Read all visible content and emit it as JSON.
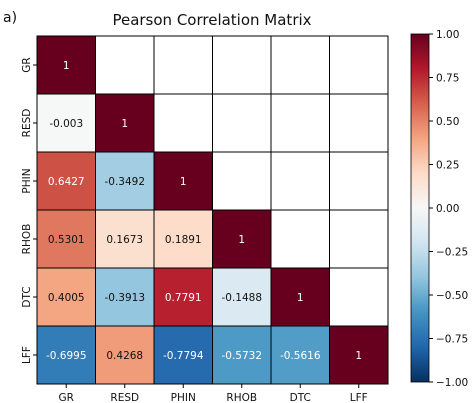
{
  "panel_label": "a)",
  "colors": {
    "cmap": [
      "#053061",
      "#2166ac",
      "#4393c3",
      "#92c5de",
      "#d1e5f0",
      "#f7f7f7",
      "#fddbc7",
      "#f4a582",
      "#d6604d",
      "#b2182b",
      "#67001f"
    ],
    "grid": "#000000"
  },
  "chart_data": {
    "type": "heatmap",
    "title": "Pearson Correlation Matrix",
    "variables": [
      "GR",
      "RESD",
      "PHIN",
      "RHOB",
      "DTC",
      "LFF"
    ],
    "matrix": [
      [
        1,
        null,
        null,
        null,
        null,
        null
      ],
      [
        -0.003,
        1,
        null,
        null,
        null,
        null
      ],
      [
        0.6427,
        -0.3492,
        1,
        null,
        null,
        null
      ],
      [
        0.5301,
        0.1673,
        0.1891,
        1,
        null,
        null
      ],
      [
        0.4005,
        -0.3913,
        0.7791,
        -0.1488,
        1,
        null
      ],
      [
        -0.6995,
        0.4268,
        -0.7794,
        -0.5732,
        -0.5616,
        1
      ]
    ],
    "cell_labels": [
      [
        "1",
        "",
        "",
        "",
        "",
        ""
      ],
      [
        "-0.003",
        "1",
        "",
        "",
        "",
        ""
      ],
      [
        "0.6427",
        "-0.3492",
        "1",
        "",
        "",
        ""
      ],
      [
        "0.5301",
        "0.1673",
        "0.1891",
        "1",
        "",
        ""
      ],
      [
        "0.4005",
        "-0.3913",
        "0.7791",
        "-0.1488",
        "1",
        ""
      ],
      [
        "-0.6995",
        "0.4268",
        "-0.7794",
        "-0.5732",
        "-0.5616",
        "1"
      ]
    ],
    "colorbar": {
      "vmin": -1,
      "vmax": 1,
      "ticks": [
        1,
        0.75,
        0.5,
        0.25,
        0,
        -0.25,
        -0.5,
        -0.75,
        -1
      ],
      "tick_labels": [
        "1.00",
        "0.75",
        "0.50",
        "0.25",
        "0.00",
        "−0.25",
        "−0.50",
        "−0.75",
        "−1.00"
      ]
    }
  }
}
